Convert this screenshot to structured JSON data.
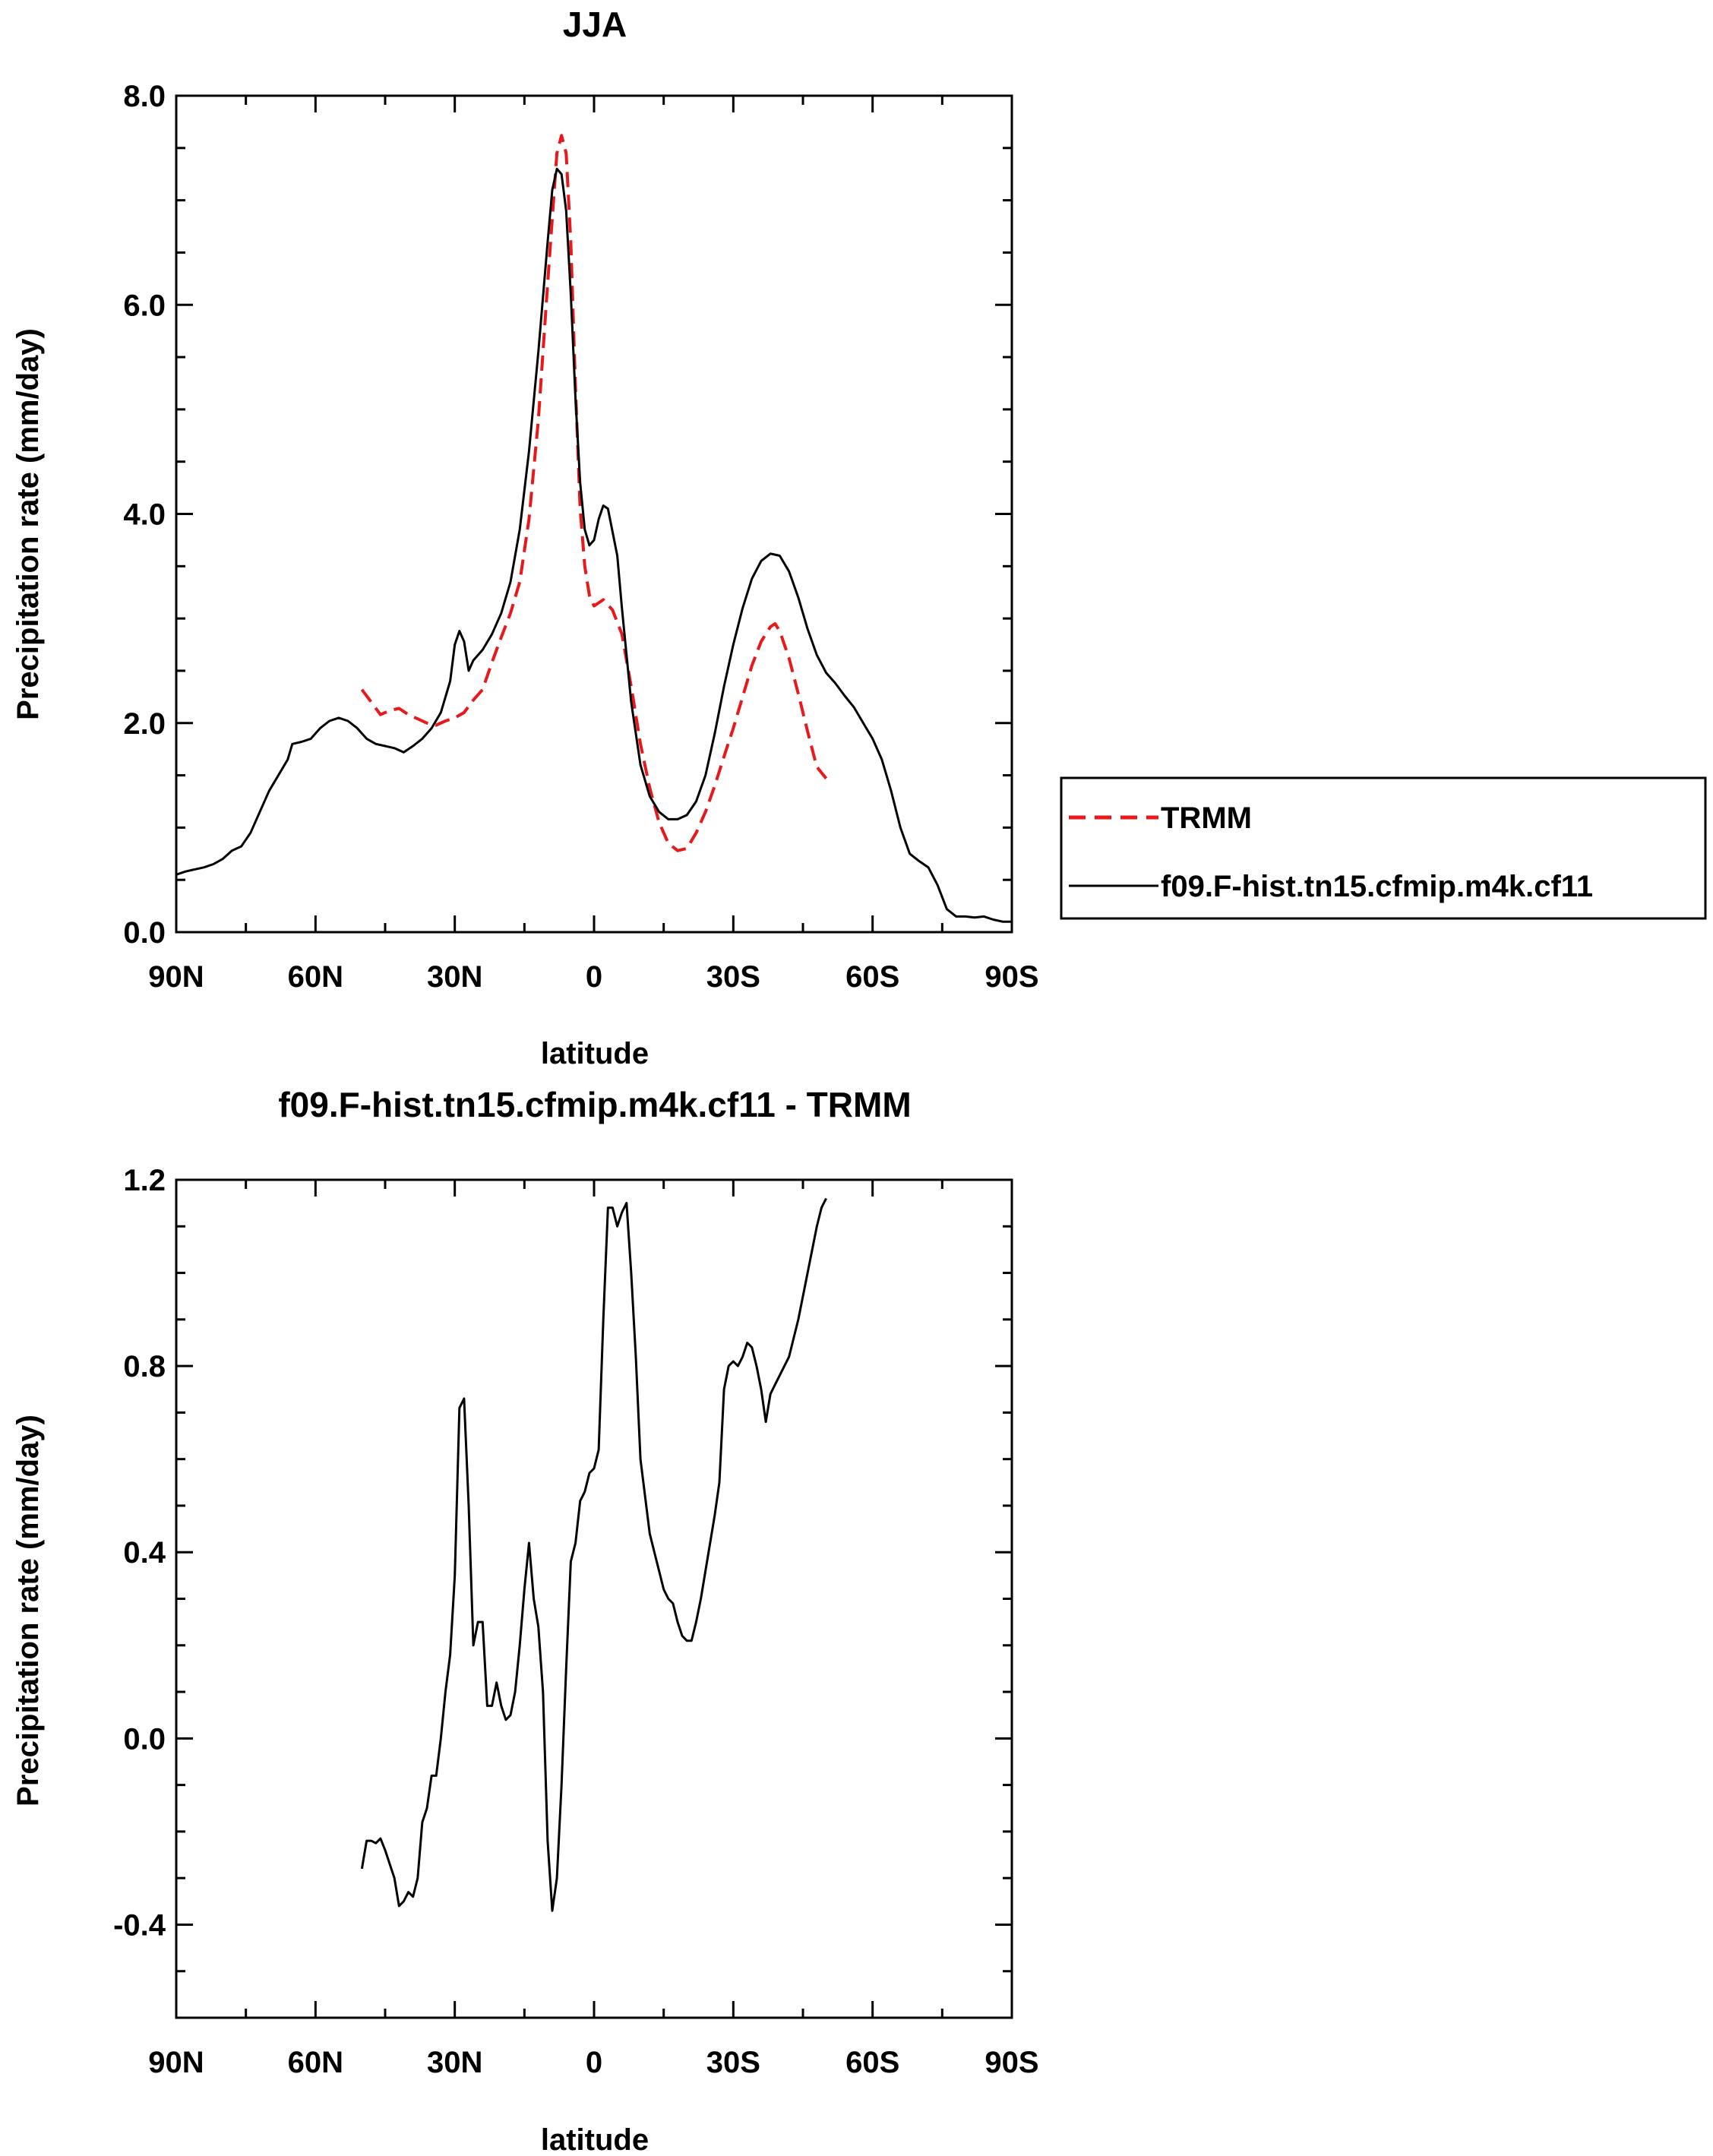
{
  "chart_data": [
    {
      "type": "line",
      "title": "JJA",
      "xlabel": "latitude",
      "ylabel": "Precipitation rate (mm/day)",
      "xlim": [
        90,
        -90
      ],
      "ylim": [
        0,
        8
      ],
      "x_ticks": [
        90,
        60,
        30,
        0,
        -30,
        -60,
        -90
      ],
      "x_tick_labels": [
        "90N",
        "60N",
        "30N",
        "0",
        "30S",
        "60S",
        "90S"
      ],
      "y_ticks": [
        0,
        2,
        4,
        6,
        8
      ],
      "y_tick_labels": [
        "0.0",
        "2.0",
        "4.0",
        "6.0",
        "8.0"
      ],
      "legend_placement": "outside-right",
      "series": [
        {
          "name": "TRMM",
          "color": "#e8191c",
          "style": "dashed",
          "points": [
            [
              50,
              2.32
            ],
            [
              48,
              2.2
            ],
            [
              46,
              2.08
            ],
            [
              44,
              2.12
            ],
            [
              42,
              2.14
            ],
            [
              40,
              2.08
            ],
            [
              38,
              2.04
            ],
            [
              36,
              2.0
            ],
            [
              34,
              1.98
            ],
            [
              32,
              2.02
            ],
            [
              30,
              2.05
            ],
            [
              28,
              2.1
            ],
            [
              26,
              2.22
            ],
            [
              24,
              2.32
            ],
            [
              22,
              2.58
            ],
            [
              20,
              2.82
            ],
            [
              18,
              3.05
            ],
            [
              16,
              3.35
            ],
            [
              14,
              3.95
            ],
            [
              12,
              4.9
            ],
            [
              10,
              6.2
            ],
            [
              8,
              7.45
            ],
            [
              7,
              7.62
            ],
            [
              6,
              7.45
            ],
            [
              5,
              6.6
            ],
            [
              4,
              5.2
            ],
            [
              3,
              4.05
            ],
            [
              2,
              3.5
            ],
            [
              1,
              3.22
            ],
            [
              0,
              3.12
            ],
            [
              -2,
              3.18
            ],
            [
              -4,
              3.08
            ],
            [
              -6,
              2.85
            ],
            [
              -8,
              2.35
            ],
            [
              -10,
              1.8
            ],
            [
              -12,
              1.38
            ],
            [
              -14,
              1.05
            ],
            [
              -16,
              0.85
            ],
            [
              -18,
              0.78
            ],
            [
              -20,
              0.8
            ],
            [
              -22,
              0.95
            ],
            [
              -24,
              1.15
            ],
            [
              -26,
              1.4
            ],
            [
              -28,
              1.68
            ],
            [
              -30,
              1.95
            ],
            [
              -32,
              2.25
            ],
            [
              -34,
              2.55
            ],
            [
              -36,
              2.78
            ],
            [
              -38,
              2.92
            ],
            [
              -39,
              2.95
            ],
            [
              -40,
              2.88
            ],
            [
              -42,
              2.62
            ],
            [
              -44,
              2.28
            ],
            [
              -46,
              1.92
            ],
            [
              -48,
              1.58
            ],
            [
              -50,
              1.47
            ]
          ]
        },
        {
          "name": "f09.F-hist.tn15.cfmip.m4k.cf11",
          "color": "#000000",
          "style": "solid",
          "points": [
            [
              90,
              0.55
            ],
            [
              88,
              0.58
            ],
            [
              86,
              0.6
            ],
            [
              84,
              0.62
            ],
            [
              82,
              0.65
            ],
            [
              80,
              0.7
            ],
            [
              78,
              0.78
            ],
            [
              76,
              0.82
            ],
            [
              74,
              0.95
            ],
            [
              72,
              1.15
            ],
            [
              70,
              1.35
            ],
            [
              68,
              1.5
            ],
            [
              66,
              1.65
            ],
            [
              65,
              1.8
            ],
            [
              63,
              1.82
            ],
            [
              61,
              1.85
            ],
            [
              59,
              1.95
            ],
            [
              57,
              2.02
            ],
            [
              55,
              2.05
            ],
            [
              53,
              2.02
            ],
            [
              51,
              1.95
            ],
            [
              49,
              1.85
            ],
            [
              47,
              1.8
            ],
            [
              45,
              1.78
            ],
            [
              43,
              1.76
            ],
            [
              41,
              1.72
            ],
            [
              39,
              1.78
            ],
            [
              37,
              1.85
            ],
            [
              35,
              1.95
            ],
            [
              33,
              2.1
            ],
            [
              31,
              2.4
            ],
            [
              30,
              2.75
            ],
            [
              29,
              2.88
            ],
            [
              28,
              2.78
            ],
            [
              27,
              2.5
            ],
            [
              26,
              2.6
            ],
            [
              24,
              2.7
            ],
            [
              22,
              2.85
            ],
            [
              20,
              3.05
            ],
            [
              18,
              3.35
            ],
            [
              16,
              3.85
            ],
            [
              14,
              4.6
            ],
            [
              12,
              5.55
            ],
            [
              10,
              6.6
            ],
            [
              9,
              7.1
            ],
            [
              8,
              7.3
            ],
            [
              7,
              7.25
            ],
            [
              6,
              6.9
            ],
            [
              5,
              6.1
            ],
            [
              4,
              5.1
            ],
            [
              3,
              4.3
            ],
            [
              2,
              3.85
            ],
            [
              1,
              3.7
            ],
            [
              0,
              3.75
            ],
            [
              -1,
              3.95
            ],
            [
              -2,
              4.08
            ],
            [
              -3,
              4.05
            ],
            [
              -5,
              3.6
            ],
            [
              -6,
              3.1
            ],
            [
              -8,
              2.2
            ],
            [
              -10,
              1.6
            ],
            [
              -12,
              1.3
            ],
            [
              -14,
              1.15
            ],
            [
              -16,
              1.08
            ],
            [
              -18,
              1.08
            ],
            [
              -20,
              1.12
            ],
            [
              -22,
              1.25
            ],
            [
              -24,
              1.5
            ],
            [
              -26,
              1.9
            ],
            [
              -28,
              2.35
            ],
            [
              -30,
              2.75
            ],
            [
              -32,
              3.1
            ],
            [
              -34,
              3.38
            ],
            [
              -36,
              3.55
            ],
            [
              -38,
              3.62
            ],
            [
              -40,
              3.6
            ],
            [
              -42,
              3.45
            ],
            [
              -44,
              3.2
            ],
            [
              -46,
              2.9
            ],
            [
              -48,
              2.65
            ],
            [
              -50,
              2.48
            ],
            [
              -52,
              2.38
            ],
            [
              -54,
              2.26
            ],
            [
              -56,
              2.15
            ],
            [
              -58,
              2.0
            ],
            [
              -60,
              1.85
            ],
            [
              -62,
              1.65
            ],
            [
              -64,
              1.35
            ],
            [
              -66,
              1.0
            ],
            [
              -68,
              0.75
            ],
            [
              -70,
              0.68
            ],
            [
              -72,
              0.62
            ],
            [
              -74,
              0.45
            ],
            [
              -76,
              0.22
            ],
            [
              -78,
              0.15
            ],
            [
              -80,
              0.15
            ],
            [
              -82,
              0.14
            ],
            [
              -84,
              0.15
            ],
            [
              -86,
              0.12
            ],
            [
              -88,
              0.1
            ],
            [
              -90,
              0.1
            ]
          ]
        }
      ]
    },
    {
      "type": "line",
      "title": "f09.F-hist.tn15.cfmip.m4k.cf11 - TRMM",
      "xlabel": "latitude",
      "ylabel": "Precipitation rate (mm/day)",
      "xlim": [
        90,
        -90
      ],
      "ylim": [
        -0.6,
        1.2
      ],
      "x_ticks": [
        90,
        60,
        30,
        0,
        -30,
        -60,
        -90
      ],
      "x_tick_labels": [
        "90N",
        "60N",
        "30N",
        "0",
        "30S",
        "60S",
        "90S"
      ],
      "y_ticks": [
        -0.4,
        0,
        0.4,
        0.8,
        1.2
      ],
      "y_tick_labels": [
        "-0.4",
        "0.0",
        "0.4",
        "0.8",
        "1.2"
      ],
      "series": [
        {
          "color": "#000000",
          "style": "solid",
          "points": [
            [
              50,
              -0.28
            ],
            [
              49,
              -0.22
            ],
            [
              48,
              -0.22
            ],
            [
              47,
              -0.225
            ],
            [
              46,
              -0.215
            ],
            [
              45,
              -0.24
            ],
            [
              44,
              -0.27
            ],
            [
              43,
              -0.3
            ],
            [
              42,
              -0.36
            ],
            [
              41,
              -0.35
            ],
            [
              40,
              -0.33
            ],
            [
              39,
              -0.34
            ],
            [
              38,
              -0.3
            ],
            [
              37,
              -0.18
            ],
            [
              36,
              -0.15
            ],
            [
              35,
              -0.08
            ],
            [
              34,
              -0.08
            ],
            [
              33,
              0.0
            ],
            [
              32,
              0.1
            ],
            [
              31,
              0.18
            ],
            [
              30,
              0.35
            ],
            [
              29,
              0.71
            ],
            [
              28,
              0.73
            ],
            [
              27,
              0.5
            ],
            [
              26,
              0.2
            ],
            [
              25,
              0.25
            ],
            [
              24,
              0.25
            ],
            [
              23,
              0.07
            ],
            [
              22,
              0.07
            ],
            [
              21,
              0.12
            ],
            [
              20,
              0.07
            ],
            [
              19,
              0.04
            ],
            [
              18,
              0.05
            ],
            [
              17,
              0.1
            ],
            [
              16,
              0.2
            ],
            [
              15,
              0.32
            ],
            [
              14,
              0.42
            ],
            [
              13,
              0.3
            ],
            [
              12,
              0.24
            ],
            [
              11,
              0.1
            ],
            [
              10,
              -0.22
            ],
            [
              9,
              -0.37
            ],
            [
              8,
              -0.3
            ],
            [
              7,
              -0.1
            ],
            [
              6,
              0.15
            ],
            [
              5,
              0.38
            ],
            [
              4,
              0.42
            ],
            [
              3,
              0.51
            ],
            [
              2,
              0.53
            ],
            [
              1,
              0.57
            ],
            [
              0,
              0.58
            ],
            [
              -1,
              0.62
            ],
            [
              -2,
              0.9
            ],
            [
              -3,
              1.14
            ],
            [
              -4,
              1.14
            ],
            [
              -5,
              1.1
            ],
            [
              -6,
              1.13
            ],
            [
              -7,
              1.15
            ],
            [
              -8,
              1.0
            ],
            [
              -9,
              0.82
            ],
            [
              -10,
              0.6
            ],
            [
              -11,
              0.52
            ],
            [
              -12,
              0.44
            ],
            [
              -13,
              0.4
            ],
            [
              -14,
              0.36
            ],
            [
              -15,
              0.32
            ],
            [
              -16,
              0.3
            ],
            [
              -17,
              0.29
            ],
            [
              -18,
              0.25
            ],
            [
              -19,
              0.22
            ],
            [
              -20,
              0.21
            ],
            [
              -21,
              0.21
            ],
            [
              -22,
              0.25
            ],
            [
              -23,
              0.3
            ],
            [
              -24,
              0.36
            ],
            [
              -25,
              0.42
            ],
            [
              -26,
              0.48
            ],
            [
              -27,
              0.55
            ],
            [
              -28,
              0.75
            ],
            [
              -29,
              0.8
            ],
            [
              -30,
              0.81
            ],
            [
              -31,
              0.8
            ],
            [
              -32,
              0.82
            ],
            [
              -33,
              0.85
            ],
            [
              -34,
              0.84
            ],
            [
              -35,
              0.8
            ],
            [
              -36,
              0.75
            ],
            [
              -37,
              0.68
            ],
            [
              -38,
              0.74
            ],
            [
              -39,
              0.76
            ],
            [
              -40,
              0.78
            ],
            [
              -41,
              0.8
            ],
            [
              -42,
              0.82
            ],
            [
              -43,
              0.86
            ],
            [
              -44,
              0.9
            ],
            [
              -45,
              0.95
            ],
            [
              -46,
              1.0
            ],
            [
              -47,
              1.05
            ],
            [
              -48,
              1.1
            ],
            [
              -49,
              1.14
            ],
            [
              -50,
              1.16
            ]
          ]
        }
      ]
    }
  ]
}
